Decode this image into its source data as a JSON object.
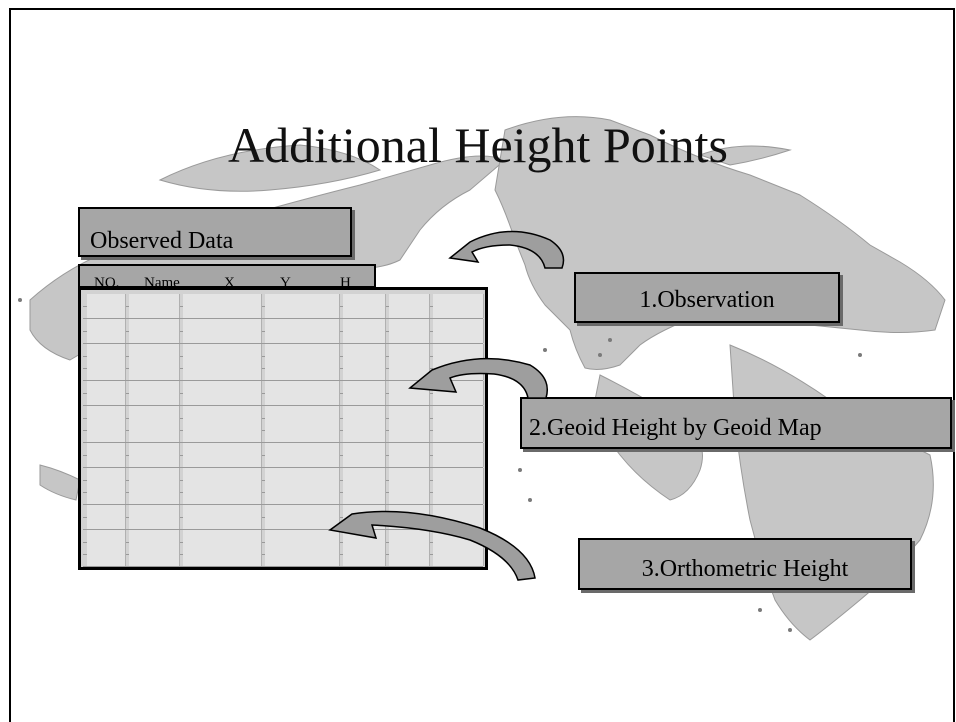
{
  "slide": {
    "title": "Additional   Height   Points",
    "observed_data_label": "Observed Data",
    "table_headers": [
      "NO.",
      "Name",
      "X",
      "Y",
      "H"
    ],
    "steps": [
      "1.Observation",
      "2.Geoid Height by Geoid Map",
      "3.Orthometric Height"
    ]
  }
}
